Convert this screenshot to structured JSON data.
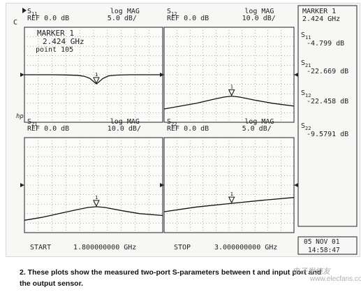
{
  "chart_data": [
    {
      "type": "line",
      "param_main": "S",
      "param_sub": "11",
      "ref": "REF 0.0 dB",
      "scale_type": "log MAG",
      "scale": "5.0 dB/",
      "marker_box": {
        "title": "MARKER 1",
        "freq": "2.424 GHz",
        "point": "point  105"
      },
      "ref_symbol": "C",
      "x": [
        1.8,
        1.92,
        2.04,
        2.16,
        2.26,
        2.32,
        2.37,
        2.4,
        2.424,
        2.45,
        2.48,
        2.53,
        2.6,
        2.72,
        2.84,
        3.0
      ],
      "y": [
        0.0,
        0.0,
        0.0,
        -0.1,
        -0.3,
        -0.8,
        -2.0,
        -3.6,
        -4.8,
        -3.6,
        -2.0,
        -0.6,
        -0.2,
        0.0,
        0.0,
        0.0
      ],
      "ylim": [
        -25,
        25
      ],
      "refline": 0,
      "marker_x": 2.424,
      "marker_label": "1"
    },
    {
      "type": "line",
      "param_main": "S",
      "param_sub": "12",
      "ref": "REF 0.0 dB",
      "scale_type": "log MAG",
      "scale": "10.0 dB/",
      "x": [
        1.8,
        1.95,
        2.1,
        2.25,
        2.35,
        2.424,
        2.5,
        2.65,
        2.8,
        3.0
      ],
      "y": [
        -36,
        -33,
        -30,
        -26,
        -23.5,
        -22.5,
        -23.5,
        -27,
        -30,
        -33
      ],
      "ylim": [
        -50,
        50
      ],
      "refline": 0,
      "marker_x": 2.424,
      "marker_label": "1"
    },
    {
      "type": "line",
      "param_main": "S",
      "param_sub": "21",
      "ref": "REF 0.0 dB",
      "scale_type": "log MAG",
      "scale": "10.0 dB/",
      "corner_mark": "hp",
      "x": [
        1.8,
        1.95,
        2.1,
        2.25,
        2.35,
        2.424,
        2.5,
        2.65,
        2.8,
        3.0
      ],
      "y": [
        -37,
        -34,
        -30,
        -26,
        -23.5,
        -22.7,
        -23.5,
        -27,
        -30,
        -32
      ],
      "ylim": [
        -50,
        50
      ],
      "refline": 0,
      "marker_x": 2.424,
      "marker_label": "1"
    },
    {
      "type": "line",
      "param_main": "S",
      "param_sub": "22",
      "ref": "REF 0.0 dB",
      "scale_type": "log MAG",
      "scale": "5.0 dB/",
      "x": [
        1.8,
        2.1,
        2.424,
        2.7,
        3.0
      ],
      "y": [
        -14,
        -11.5,
        -9.6,
        -8.0,
        -6.5
      ],
      "ylim": [
        -25,
        25
      ],
      "refline": 0,
      "marker_x": 2.424,
      "marker_label": "1"
    }
  ],
  "side_panel": {
    "title": "MARKER 1",
    "freq": "2.424 GHz",
    "readouts": [
      {
        "main": "S",
        "sub": "11",
        "value": "-4.799 dB"
      },
      {
        "main": "S",
        "sub": "21",
        "value": "-22.669 dB"
      },
      {
        "main": "S",
        "sub": "12",
        "value": "-22.458 dB"
      },
      {
        "main": "S",
        "sub": "22",
        "value": "-9.5791 dB"
      }
    ]
  },
  "footer": {
    "start_label": "START",
    "start_value": "1.800000000 GHz",
    "stop_label": "STOP",
    "stop_value": "3.000000000 GHz",
    "date": "05 NOV 01",
    "time": "14:58:47"
  },
  "caption": {
    "line1": "2. These plots show the measured two-port S-parameters between t",
    "line1_tail": "and input port and",
    "line2": "the output sensor."
  },
  "watermark": {
    "line1": "电子发烧友",
    "line2": "www.elecfans.com"
  }
}
